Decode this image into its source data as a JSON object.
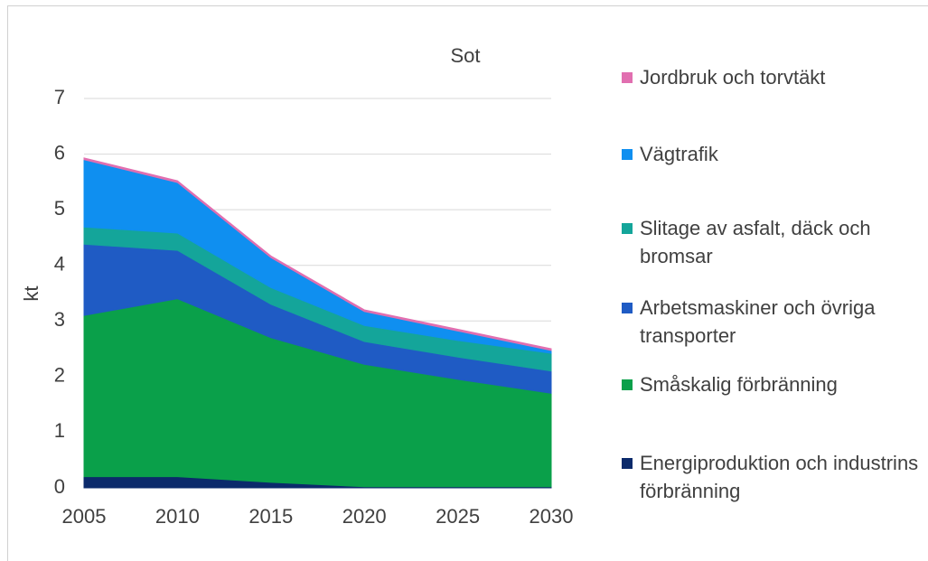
{
  "chart_data": {
    "type": "stacked_area",
    "title": "Sot",
    "ylabel": "kt",
    "x": [
      2005,
      2010,
      2015,
      2020,
      2025,
      2030
    ],
    "xlim": [
      2005,
      2030
    ],
    "xticks": [
      2005,
      2010,
      2015,
      2020,
      2025,
      2030
    ],
    "ylim": [
      0,
      7
    ],
    "yticks": [
      0,
      1,
      2,
      3,
      4,
      5,
      6,
      7
    ],
    "grid": true,
    "series": [
      {
        "name": "Energiproduktion och industrins förbränning",
        "color": "#0b2a6b",
        "values": [
          0.2,
          0.2,
          0.1,
          0.02,
          0.02,
          0.02
        ]
      },
      {
        "name": "Småskalig förbränning",
        "color": "#0aa04a",
        "values": [
          2.9,
          3.2,
          2.6,
          2.2,
          1.93,
          1.68
        ]
      },
      {
        "name": "Arbetsmaskiner och övriga transporter",
        "color": "#1f5bc4",
        "values": [
          1.28,
          0.87,
          0.6,
          0.41,
          0.4,
          0.4
        ]
      },
      {
        "name": "Slitage av asfalt, däck och bromsar",
        "color": "#14a59a",
        "values": [
          0.31,
          0.31,
          0.3,
          0.29,
          0.3,
          0.32
        ]
      },
      {
        "name": "Vägtrafik",
        "color": "#0f8ff0",
        "values": [
          1.21,
          0.91,
          0.54,
          0.25,
          0.17,
          0.05
        ]
      },
      {
        "name": "Jordbruk och torvtäkt",
        "color": "#e16fb0",
        "values": [
          0.03,
          0.03,
          0.03,
          0.03,
          0.03,
          0.03
        ]
      }
    ]
  }
}
